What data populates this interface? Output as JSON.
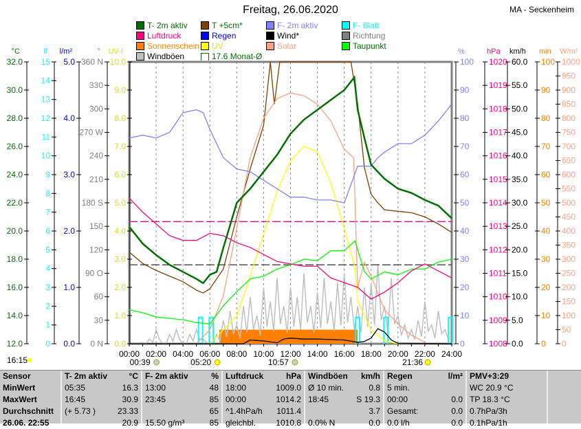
{
  "title": "Freitag, 26.06.2020",
  "station": "MA - Seckenheim",
  "legend": [
    {
      "label": "T- 2m aktiv",
      "color": "#007000"
    },
    {
      "label": "T +5cm*",
      "color": "#804000"
    },
    {
      "label": "F- 2m aktiv",
      "color": "#8080ff"
    },
    {
      "label": "F- Blatt",
      "color": "#00ffff"
    },
    {
      "label": "Luftdruck",
      "color": "#ff0080"
    },
    {
      "label": "Regen",
      "color": "#0000ff"
    },
    {
      "label": "Wind*",
      "color": "#000000"
    },
    {
      "label": "Richtung",
      "color": "#808080"
    },
    {
      "label": "Sonnenschein",
      "color": "#ff8000"
    },
    {
      "label": "UV",
      "color": "#ffff00"
    },
    {
      "label": "Solar",
      "color": "#ffa080"
    },
    {
      "label": "Taupunkt",
      "color": "#00ff00"
    },
    {
      "label": "Windböen",
      "color": "#c0c0c0"
    },
    {
      "label": "17.6 Monat-Ø",
      "color": "#007000"
    }
  ],
  "chart_data": {
    "type": "line",
    "title": "Freitag, 26.06.2020",
    "x_ticks": [
      "00:00",
      "02:00",
      "04:00",
      "06:00",
      "08:00",
      "10:00",
      "12:00",
      "14:00",
      "16:00",
      "18:00",
      "20:00",
      "22:00",
      "24:00"
    ],
    "xlim": [
      0,
      24
    ],
    "axes": {
      "left": [
        {
          "unit": "°C",
          "color": "#007000",
          "range": [
            12,
            32
          ],
          "ticks": [
            "32.0",
            "30.0",
            "28.0",
            "26.0",
            "24.0",
            "22.0",
            "20.0",
            "18.0",
            "16.0",
            "14.0",
            "12.0"
          ]
        },
        {
          "unit": "lf",
          "color": "#00ffff",
          "range": [
            0,
            15
          ],
          "ticks": [
            "15",
            "14",
            "13",
            "12",
            "11",
            "10",
            "9",
            "8",
            "7",
            "6",
            "5",
            "4",
            "3",
            "2",
            "1",
            "0"
          ]
        },
        {
          "unit": "l/m²",
          "color": "#0000ff",
          "range": [
            0,
            5
          ],
          "ticks": [
            "5.0",
            "4.0",
            "3.0",
            "2.0",
            "1.0",
            "0.0"
          ]
        },
        {
          "unit": "°",
          "color": "#808080",
          "range": [
            0,
            360
          ],
          "ticks": [
            "360 N",
            "330",
            "300",
            "270 W",
            "240",
            "210",
            "180 S",
            "150",
            "120",
            "90 O",
            "60",
            "30",
            "0 N"
          ]
        },
        {
          "unit": "UV-I",
          "color": "#e0e000",
          "range": [
            0,
            10
          ],
          "ticks": [
            "10.0",
            "9.0",
            "8.0",
            "7.0",
            "6.0",
            "5.0",
            "4.0",
            "3.0",
            "2.0",
            "1.0",
            "0.0"
          ]
        }
      ],
      "right": [
        {
          "unit": "%",
          "color": "#8080ff",
          "range": [
            0,
            100
          ],
          "ticks": [
            "100",
            "90",
            "80",
            "70",
            "60",
            "50",
            "40",
            "30",
            "20",
            "10",
            "0"
          ]
        },
        {
          "unit": "hPa",
          "color": "#ff0080",
          "range": [
            1008,
            1020
          ],
          "ticks": [
            "1020",
            "1019",
            "1018",
            "1017",
            "1016",
            "1015",
            "1014",
            "1013",
            "1012",
            "1011",
            "1010",
            "1009",
            "1008"
          ]
        },
        {
          "unit": "km/h",
          "color": "#000000",
          "range": [
            0,
            60
          ],
          "ticks": [
            "60.0",
            "55.0",
            "50.0",
            "45.0",
            "40.0",
            "35.0",
            "30.0",
            "25.0",
            "20.0",
            "15.0",
            "10.0",
            "5.0",
            "0.0"
          ]
        },
        {
          "unit": "min",
          "color": "#ff8000",
          "range": [
            0,
            100
          ],
          "ticks": [
            "100",
            "90",
            "80",
            "70",
            "60",
            "50",
            "40",
            "30",
            "20",
            "10",
            "0"
          ]
        },
        {
          "unit": "W/m²",
          "color": "#ffa080",
          "range": [
            0,
            1000
          ],
          "ticks": [
            "1000",
            "950",
            "900",
            "850",
            "800",
            "750",
            "700",
            "650",
            "600",
            "550",
            "500",
            "450",
            "400",
            "350",
            "300",
            "250",
            "200",
            "150",
            "100",
            "50",
            "0"
          ]
        }
      ]
    },
    "series": [
      {
        "name": "T +5cm*",
        "axis": "°C",
        "color": "#804000",
        "x": [
          0,
          1,
          2,
          3,
          4,
          5,
          5.5,
          6,
          7,
          8,
          9,
          10,
          10.5,
          10.8,
          11.2,
          16.5,
          17,
          17.5,
          18,
          18.5,
          19,
          20,
          21,
          22,
          23,
          24
        ],
        "y": [
          18.5,
          17.7,
          17.2,
          16.8,
          16.4,
          15.8,
          15.6,
          15.9,
          17.3,
          21.0,
          24.4,
          27.5,
          33,
          29,
          33,
          33,
          29.0,
          24.5,
          22.6,
          22.0,
          21.5,
          21.4,
          21.3,
          21.0,
          20.5,
          19.9
        ]
      },
      {
        "name": "Solar",
        "axis": "W/m²",
        "color": "#ffa080",
        "x": [
          5,
          6,
          7,
          8,
          9,
          10,
          11,
          12,
          13,
          14,
          15,
          16,
          16.7,
          17,
          17.5,
          18,
          19,
          20,
          21,
          22
        ],
        "y": [
          0,
          50,
          170,
          410,
          660,
          800,
          870,
          890,
          880,
          850,
          790,
          690,
          660,
          200,
          290,
          240,
          120,
          70,
          30,
          5
        ]
      },
      {
        "name": "UV",
        "axis": "UV-I",
        "color": "#ffff00",
        "x": [
          6,
          8,
          9,
          10,
          11,
          12,
          13,
          14,
          15,
          16,
          16.8,
          17,
          18,
          19,
          20
        ],
        "y": [
          0,
          1.0,
          2.4,
          3.9,
          5.4,
          6.5,
          7.0,
          6.8,
          5.7,
          4.1,
          2.7,
          1.5,
          0.5,
          0.1,
          0
        ]
      },
      {
        "name": "Taupunkt",
        "axis": "°C",
        "color": "#00ff00",
        "x": [
          0,
          1,
          2,
          3,
          4,
          5,
          6,
          7,
          8,
          9,
          10,
          11,
          12,
          13,
          14,
          15,
          16,
          16.8,
          17.5,
          18,
          19,
          20,
          21,
          22,
          23,
          24
        ],
        "y": [
          14.4,
          14.2,
          13.9,
          13.8,
          13.7,
          13.5,
          13.4,
          14.7,
          15.7,
          16.6,
          16.8,
          17.3,
          17.6,
          18.0,
          17.9,
          18.6,
          18.6,
          19.3,
          17.1,
          16.6,
          17.1,
          16.9,
          17.3,
          17.3,
          17.8,
          18.0
        ]
      },
      {
        "name": "F- 2m aktiv",
        "axis": "%",
        "color": "#8080ff",
        "x": [
          0,
          1,
          2,
          3,
          4,
          5,
          5.5,
          6,
          7,
          8,
          9,
          10,
          11,
          12,
          13,
          14,
          15,
          16,
          17,
          18,
          18.5,
          19,
          20,
          21,
          22,
          23,
          24
        ],
        "y": [
          73,
          74,
          73,
          75,
          82,
          83,
          82,
          76,
          66,
          62,
          61,
          58,
          55,
          52,
          52,
          51,
          51,
          50,
          63,
          63,
          66,
          68,
          71,
          71,
          74,
          79,
          85
        ]
      },
      {
        "name": "Luftdruck",
        "axis": "hPa",
        "color": "#ff0080",
        "x": [
          0,
          1,
          2,
          3,
          4,
          5,
          6,
          7,
          8,
          9,
          10,
          11,
          12,
          13,
          14,
          15,
          16,
          17,
          18,
          19,
          20,
          21,
          22,
          23,
          24
        ],
        "y": [
          1014.2,
          1013.6,
          1013.1,
          1012.6,
          1012.4,
          1012.4,
          1012.7,
          1012.6,
          1012.3,
          1012.1,
          1011.8,
          1011.5,
          1011.4,
          1011.3,
          1011.3,
          1010.8,
          1010.6,
          1010.4,
          1009.9,
          1010.2,
          1010.6,
          1011.1,
          1011.4,
          1011.1,
          1010.8
        ]
      },
      {
        "name": "T- 2m aktiv",
        "axis": "°C",
        "color": "#007000",
        "x": [
          0,
          1,
          2,
          3,
          4,
          5,
          5.5,
          6,
          6.5,
          7,
          8,
          9,
          10,
          11,
          12,
          13,
          14,
          15,
          16,
          16.75,
          17,
          17.5,
          18,
          19,
          20,
          21,
          22,
          23,
          24
        ],
        "y": [
          20.3,
          19.1,
          18.3,
          17.6,
          17.1,
          16.6,
          16.3,
          16.9,
          17.1,
          18.8,
          22.0,
          23.0,
          24.2,
          25.4,
          26.9,
          27.9,
          28.6,
          29.3,
          30.0,
          30.9,
          28.6,
          26.6,
          24.7,
          23.7,
          23.0,
          22.7,
          22.2,
          21.8,
          20.9
        ]
      },
      {
        "name": "Wind*",
        "axis": "km/h",
        "color": "#000000",
        "x": [
          0,
          8.5,
          9,
          10,
          11,
          11.5,
          12,
          13,
          14,
          15,
          16,
          17,
          17.5,
          18,
          18.5,
          19,
          19.5,
          20,
          24
        ],
        "y": [
          0,
          0,
          0.8,
          0.6,
          0.2,
          1.0,
          1.2,
          1.0,
          1.0,
          0.9,
          0.8,
          0.3,
          0.5,
          1.2,
          3.2,
          2.5,
          0.8,
          0.1,
          0
        ]
      }
    ],
    "windboeen": {
      "name": "Windböen",
      "axis": "km/h",
      "color": "#c0c0c0",
      "x_step_h": 0.5,
      "values": [
        0,
        0,
        0,
        1,
        3,
        0,
        2,
        3,
        0,
        2,
        3,
        1,
        0,
        2,
        5,
        7,
        4,
        8,
        10,
        6,
        12,
        9,
        14,
        8,
        12,
        10,
        15,
        8,
        11,
        14,
        9,
        13,
        15,
        10,
        8,
        12,
        13,
        17,
        8,
        14,
        6,
        4,
        3,
        5,
        9,
        4,
        7,
        3
      ]
    },
    "sonnenschein": {
      "name": "Sonnenschein",
      "axis": "min",
      "color": "#ff8000",
      "start_h": 6.7,
      "end_h": 17.0,
      "value": 5
    },
    "f_blatt": {
      "name": "F- Blatt",
      "axis": "lf",
      "color": "#00ffff",
      "spikes_h": [
        5.3,
        6.1,
        17.0,
        19.1,
        23.9
      ],
      "value": 1.4
    },
    "reference_lines": [
      {
        "name": "Luftdruck Mittel",
        "axis": "hPa",
        "value": 1013.2,
        "color": "#ff0080"
      },
      {
        "name": "17.6 Monat-Ø",
        "axis": "°C",
        "value": 17.6,
        "color": "#404040"
      }
    ]
  },
  "astro": {
    "moonset": "00:39",
    "sunrise": "05:20",
    "moonrise": "10:57",
    "sunset": "21:36",
    "moon_time": "16:15"
  },
  "table": {
    "columns": [
      {
        "h1": "Sensor",
        "h2": "",
        "rows": [
          [
            "MinWert",
            ""
          ],
          [
            "MaxWert",
            ""
          ],
          [
            "Durchschnitt",
            ""
          ],
          [
            "26.06. 22:55",
            ""
          ]
        ]
      },
      {
        "h1": "T- 2m aktiv",
        "h2": "°C",
        "rows": [
          [
            "05:35",
            "16.3"
          ],
          [
            "16:45",
            "30.9"
          ],
          [
            "(+ 5.73 )",
            "23.33"
          ],
          [
            "",
            "20.9"
          ]
        ]
      },
      {
        "h1": "F- 2m aktiv",
        "h2": "%",
        "rows": [
          [
            "13:00",
            "48"
          ],
          [
            "23:45",
            "85"
          ],
          [
            "",
            "65"
          ],
          [
            "15.50 g/m³",
            "85"
          ]
        ]
      },
      {
        "h1": "Luftdruck",
        "h2": "hPa",
        "rows": [
          [
            "18:00",
            "1009.0"
          ],
          [
            "00:00",
            "1014.2"
          ],
          [
            "^1.4hPa/h",
            "1011.4"
          ],
          [
            "gleichbl.",
            "1010.8"
          ]
        ]
      },
      {
        "h1": "Windböen",
        "h2": "km/h",
        "rows": [
          [
            "Ø 10 min.",
            "0.8"
          ],
          [
            "18:45",
            "S 19.3"
          ],
          [
            "",
            "3.7"
          ],
          [
            "0.0% N",
            "0.0"
          ]
        ]
      },
      {
        "h1": "Regen",
        "h2": "l/m²",
        "rows": [
          [
            "5 min.",
            ""
          ],
          [
            "00:00",
            "0.0"
          ],
          [
            "Gesamt:",
            "0.0"
          ],
          [
            "0.0 l/h",
            "0.0"
          ]
        ]
      },
      {
        "h1": "PMV+3:29",
        "h2": "",
        "rows": [
          [
            "WC 20.9 °C",
            ""
          ],
          [
            "TP 18.3 °C",
            ""
          ],
          [
            "0.7hPa/3h",
            ""
          ],
          [
            "0.1hPa/1h",
            ""
          ]
        ]
      }
    ]
  }
}
